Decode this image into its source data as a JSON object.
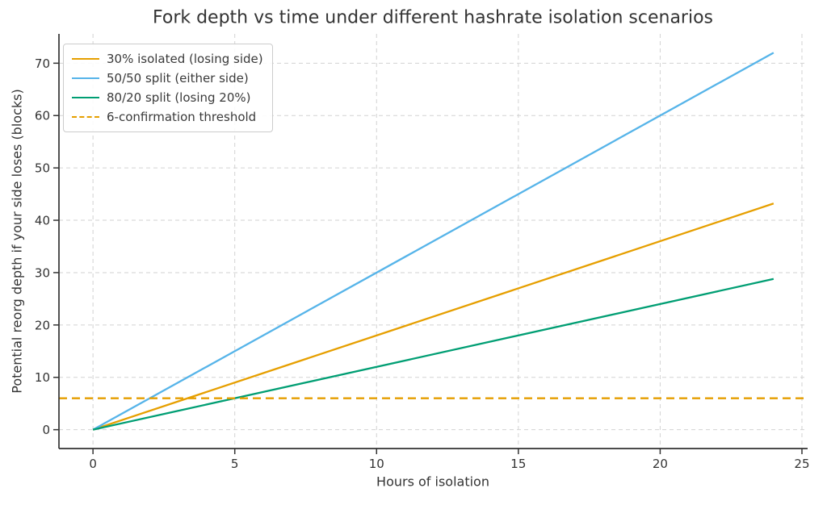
{
  "chart_data": {
    "type": "line",
    "title": "Fork depth vs time under different hashrate isolation scenarios",
    "xlabel": "Hours of isolation",
    "ylabel": "Potential reorg depth if your side loses (blocks)",
    "x": [
      0,
      24
    ],
    "series": [
      {
        "name": "30% isolated (losing side)",
        "color": "#E69F00",
        "linestyle": "solid",
        "values": [
          0,
          43.2
        ]
      },
      {
        "name": "50/50 split (either side)",
        "color": "#56B4E9",
        "linestyle": "solid",
        "values": [
          0,
          72
        ]
      },
      {
        "name": "80/20 split (losing 20%)",
        "color": "#009E73",
        "linestyle": "solid",
        "values": [
          0,
          28.8
        ]
      }
    ],
    "threshold": {
      "name": "6-confirmation threshold",
      "color": "#E69F00",
      "linestyle": "dashed",
      "y": 6
    },
    "xticks": [
      0,
      5,
      10,
      15,
      20,
      25
    ],
    "yticks": [
      0,
      10,
      20,
      30,
      40,
      50,
      60,
      70
    ],
    "xlim": [
      -1.2,
      25.2
    ],
    "ylim": [
      -3.6,
      75.6
    ],
    "grid": true,
    "legend_position": "upper left",
    "colors": {
      "grid": "#d2d2d2",
      "spine": "#333333",
      "tick_label": "#333333",
      "title": "#333333"
    }
  }
}
